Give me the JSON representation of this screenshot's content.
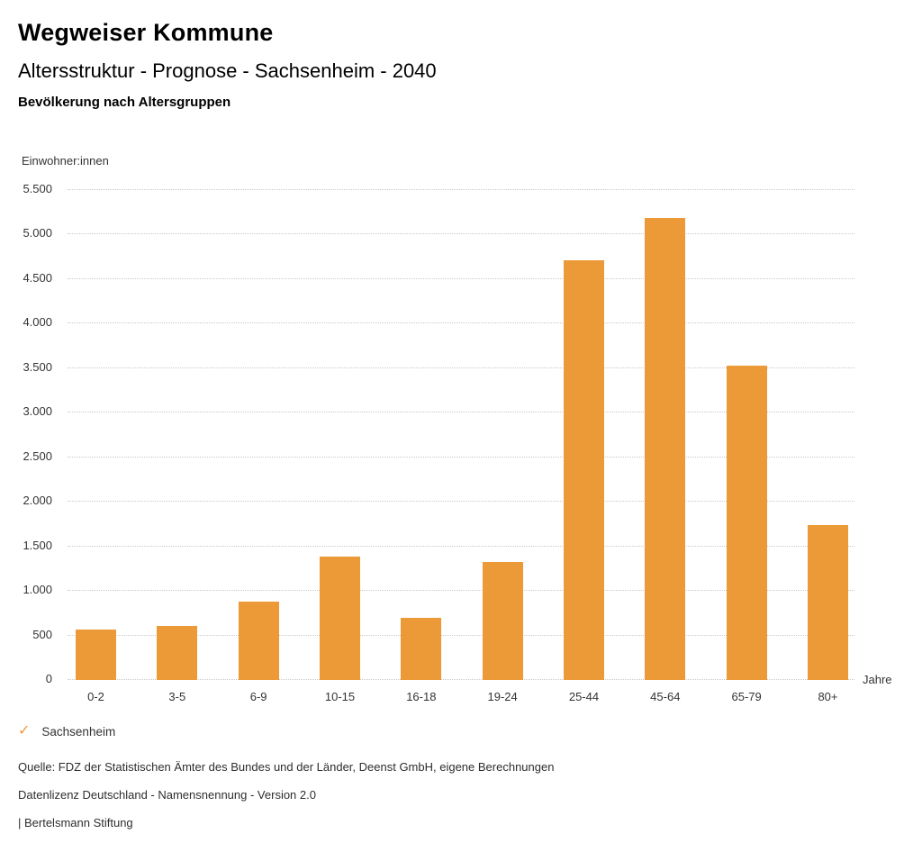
{
  "header": {
    "title": "Wegweiser Kommune",
    "subtitle": "Altersstruktur - Prognose - Sachsenheim - 2040",
    "chart_heading": "Bevölkerung nach Altersgruppen"
  },
  "chart_data": {
    "type": "bar",
    "title": "Bevölkerung nach Altersgruppen",
    "categories": [
      "0-2",
      "3-5",
      "6-9",
      "10-15",
      "16-18",
      "19-24",
      "25-44",
      "45-64",
      "65-79",
      "80+"
    ],
    "series": [
      {
        "name": "Sachsenheim",
        "values": [
          560,
          600,
          870,
          1370,
          690,
          1310,
          4700,
          5180,
          3520,
          1730
        ]
      }
    ],
    "ylabel": "Einwohner:innen",
    "xlabel": "Jahre",
    "ylim": [
      0,
      5500
    ],
    "ytick_step": 500,
    "ytick_labels": [
      "0",
      "500",
      "1.000",
      "1.500",
      "2.000",
      "2.500",
      "3.000",
      "3.500",
      "4.000",
      "4.500",
      "5.000",
      "5.500"
    ],
    "grid": true,
    "legend_position": "bottom-left",
    "bar_color": "#EC9937"
  },
  "legend": {
    "check_icon": "✓",
    "items": [
      {
        "label": "Sachsenheim",
        "checked": true
      }
    ]
  },
  "footer": {
    "source": "Quelle: FDZ der Statistischen Ämter des Bundes und der Länder, Deenst GmbH, eigene Berechnungen",
    "license": "Datenlizenz Deutschland - Namensnennung - Version 2.0",
    "attribution": "| Bertelsmann Stiftung"
  },
  "colors": {
    "accent": "#EC9937",
    "bar": "#EC9937",
    "grid": "#C9C9C9",
    "title_text": "#000000",
    "tick_text": "#333333"
  }
}
